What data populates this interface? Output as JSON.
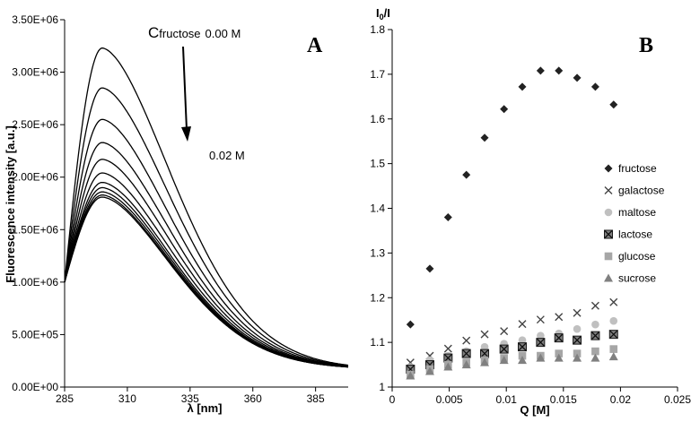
{
  "chart_data": [
    {
      "type": "line",
      "panel_label": "A",
      "xlabel": "λ [nm]",
      "ylabel": "Fluorescence intensity [a.u.]",
      "xlim": [
        285,
        398
      ],
      "ylim": [
        0,
        3500000
      ],
      "x_ticks": [
        "285",
        "310",
        "335",
        "360",
        "385"
      ],
      "y_ticks": [
        "0.00E+00",
        "5.00E+05",
        "1.00E+06",
        "1.50E+06",
        "2.00E+06",
        "2.50E+06",
        "3.00E+06",
        "3.50E+06"
      ],
      "annotation_top_prefix": "C",
      "annotation_top_subscript": "fructose",
      "annotation_top_value": "0.00 M",
      "annotation_bottom": "0.02 M",
      "peak_x": 300,
      "start_value": 1000000,
      "end_value": 170000,
      "grid": false,
      "series_peaks": [
        3230000,
        2850000,
        2550000,
        2330000,
        2170000,
        2040000,
        1950000,
        1900000,
        1860000,
        1830000,
        1810000
      ]
    },
    {
      "type": "scatter",
      "panel_label": "B",
      "xlabel": "Q [M]",
      "ylabel_main": "I",
      "ylabel_sub": "0",
      "ylabel_tail": "/I",
      "xlim": [
        0,
        0.025
      ],
      "ylim": [
        1.0,
        1.8
      ],
      "x_ticks": [
        "0",
        "0.005",
        "0.01",
        "0.015",
        "0.02",
        "0.025"
      ],
      "y_ticks": [
        "1",
        "1.1",
        "1.2",
        "1.3",
        "1.4",
        "1.5",
        "1.6",
        "1.7",
        "1.8"
      ],
      "legend_position": "right",
      "grid": false,
      "x": [
        0.0016,
        0.0033,
        0.0049,
        0.0065,
        0.0081,
        0.0098,
        0.0114,
        0.013,
        0.0146,
        0.0162,
        0.0178,
        0.0194
      ],
      "series": [
        {
          "name": "fructose",
          "marker": "diamond",
          "color": "#222222",
          "values": [
            1.14,
            1.265,
            1.38,
            1.475,
            1.558,
            1.622,
            1.672,
            1.708,
            1.708,
            1.692,
            1.672,
            1.632
          ]
        },
        {
          "name": "galactose",
          "marker": "x",
          "color": "#444444",
          "values": [
            1.055,
            1.07,
            1.086,
            1.104,
            1.118,
            1.125,
            1.141,
            1.151,
            1.157,
            1.166,
            1.182,
            1.19
          ]
        },
        {
          "name": "maltose",
          "marker": "circle",
          "color": "#c0c0c0",
          "values": [
            1.045,
            1.06,
            1.07,
            1.08,
            1.09,
            1.097,
            1.105,
            1.115,
            1.12,
            1.13,
            1.14,
            1.148
          ]
        },
        {
          "name": "lactose",
          "marker": "boxx",
          "color": "#1a1a1a",
          "values": [
            1.04,
            1.05,
            1.065,
            1.075,
            1.075,
            1.085,
            1.09,
            1.1,
            1.11,
            1.105,
            1.115,
            1.118
          ]
        },
        {
          "name": "glucose",
          "marker": "square",
          "color": "#a6a6a6",
          "values": [
            1.028,
            1.04,
            1.05,
            1.055,
            1.06,
            1.065,
            1.07,
            1.07,
            1.075,
            1.075,
            1.08,
            1.085
          ]
        },
        {
          "name": "sucrose",
          "marker": "triangle",
          "color": "#808080",
          "values": [
            1.025,
            1.035,
            1.045,
            1.05,
            1.055,
            1.06,
            1.06,
            1.065,
            1.065,
            1.065,
            1.065,
            1.068
          ]
        }
      ]
    }
  ]
}
